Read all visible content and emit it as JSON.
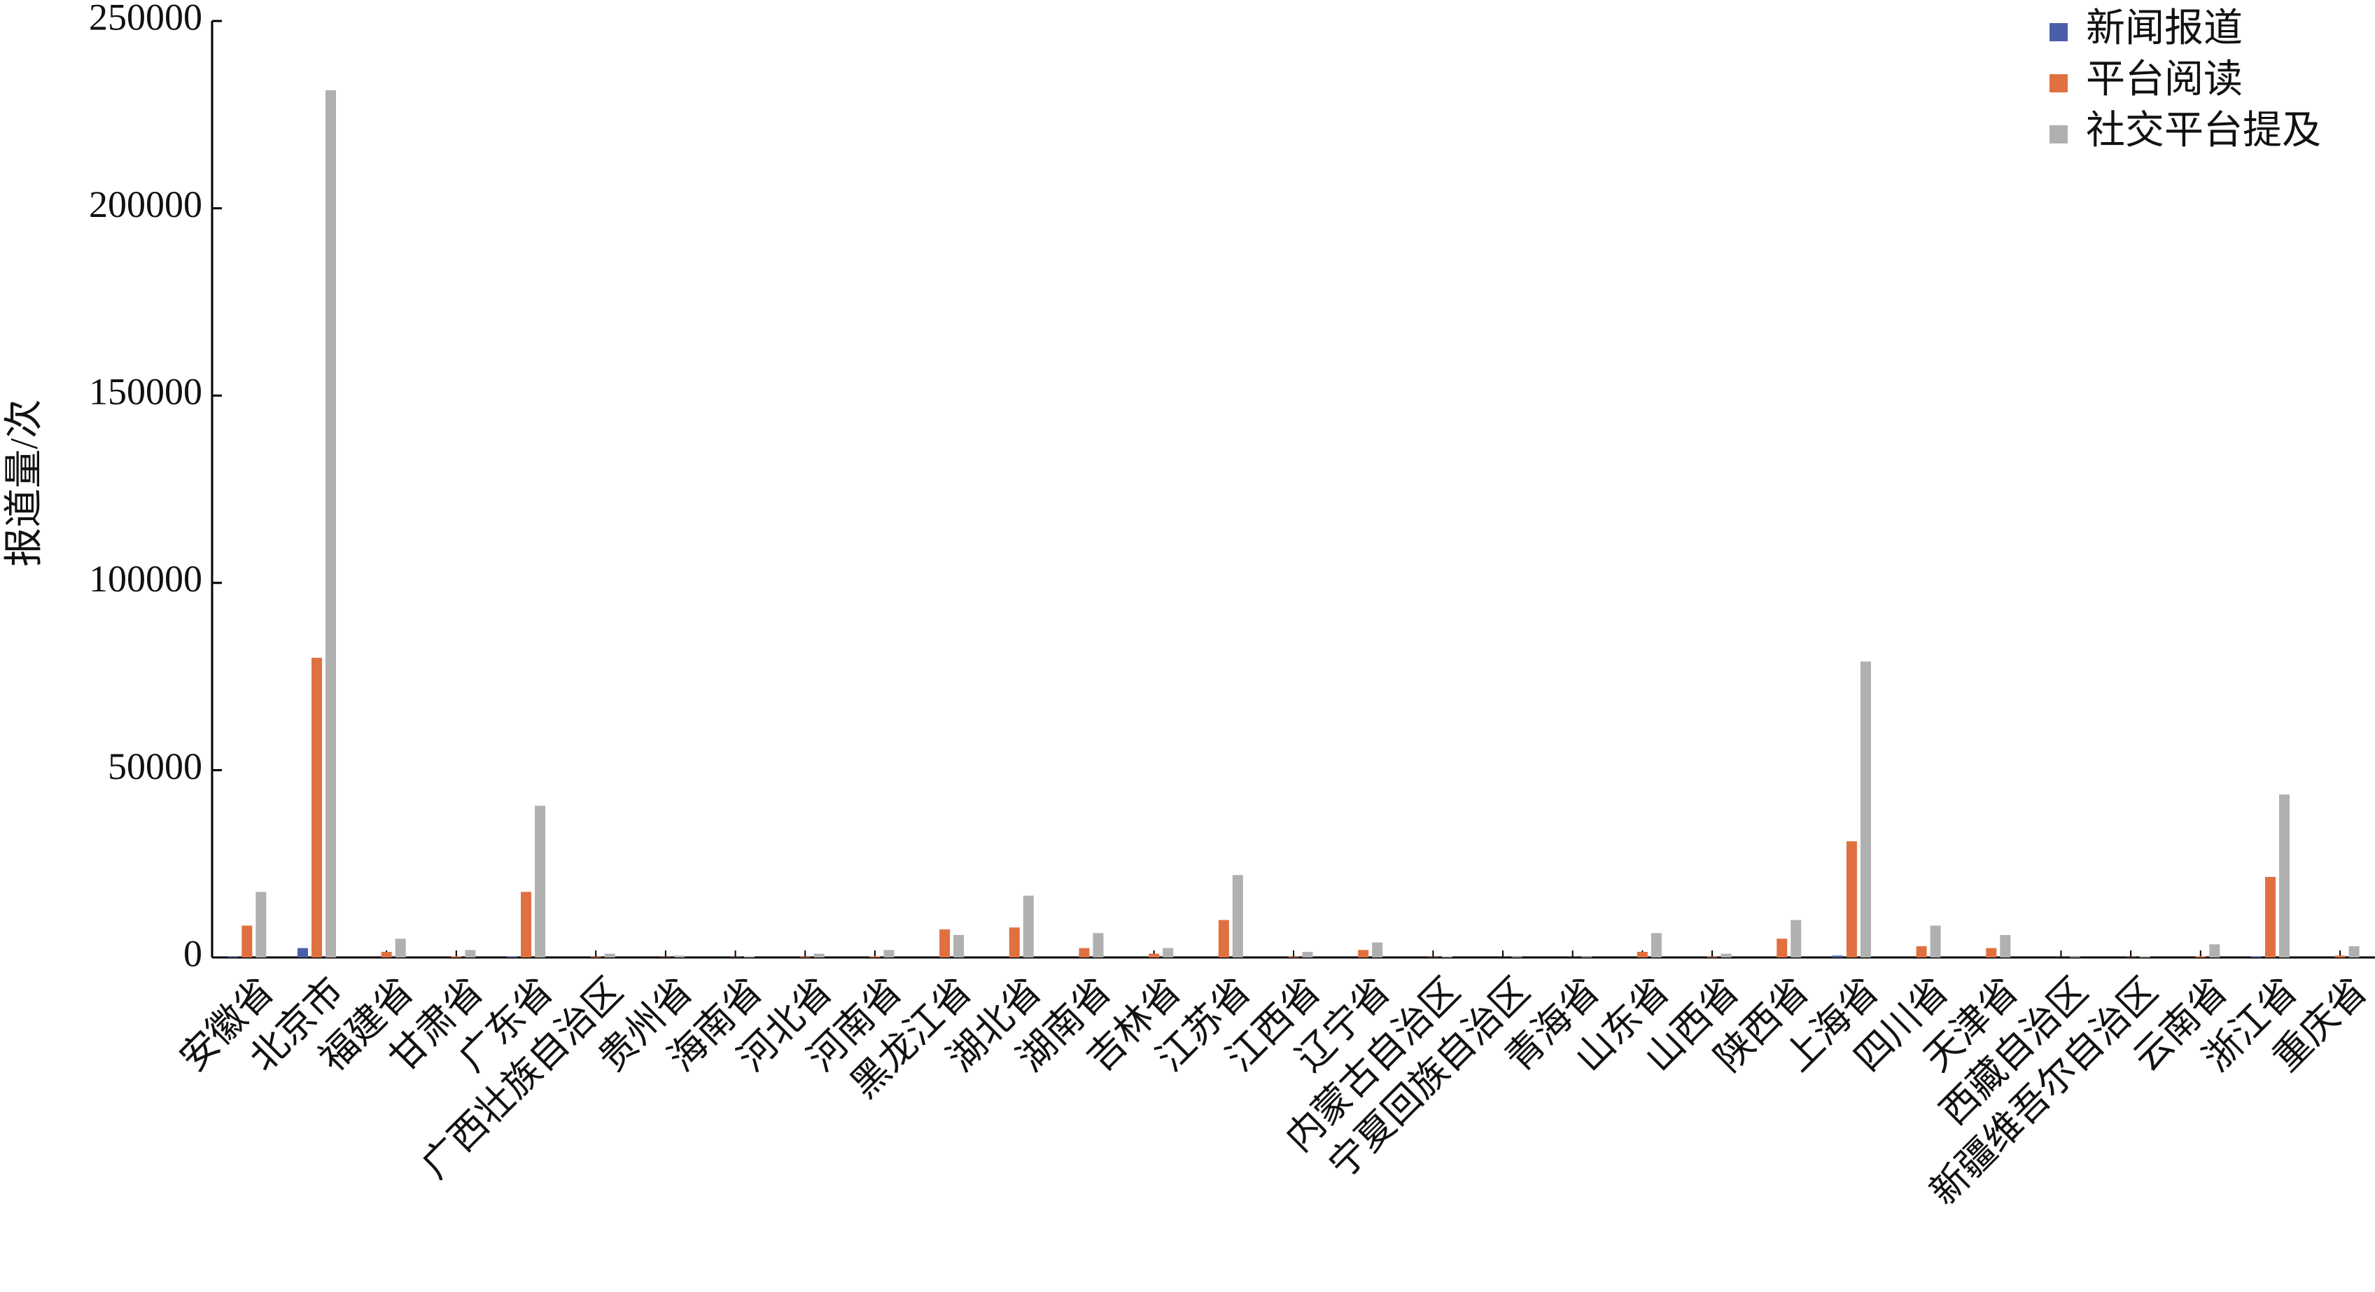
{
  "chart_data": {
    "type": "bar",
    "y_label": "报道量/次",
    "categories": [
      "安徽省",
      "北京市",
      "福建省",
      "甘肃省",
      "广东省",
      "广西壮族自治区",
      "贵州省",
      "海南省",
      "河北省",
      "河南省",
      "黑龙江省",
      "湖北省",
      "湖南省",
      "吉林省",
      "江苏省",
      "江西省",
      "辽宁省",
      "内蒙古自治区",
      "宁夏回族自治区",
      "青海省",
      "山东省",
      "山西省",
      "陕西省",
      "上海省",
      "四川省",
      "天津省",
      "西藏自治区",
      "新疆维吾尔自治区",
      "云南省",
      "浙江省",
      "重庆省"
    ],
    "series": [
      {
        "name": "新闻报道",
        "color": "#4a5fa8",
        "values": [
          200,
          2500,
          0,
          0,
          300,
          0,
          0,
          0,
          0,
          0,
          0,
          0,
          0,
          0,
          0,
          0,
          0,
          0,
          0,
          0,
          0,
          0,
          0,
          500,
          0,
          0,
          0,
          0,
          0,
          300,
          0
        ]
      },
      {
        "name": "平台阅读",
        "color": "#e07040",
        "values": [
          8500,
          80000,
          1500,
          300,
          17500,
          200,
          100,
          100,
          200,
          300,
          7500,
          8000,
          2500,
          1000,
          10000,
          200,
          2000,
          100,
          50,
          50,
          1500,
          200,
          5000,
          31000,
          3000,
          2500,
          50,
          100,
          300,
          21500,
          500
        ]
      },
      {
        "name": "社交平台提及",
        "color": "#b0b0b0",
        "values": [
          17500,
          231500,
          5000,
          2000,
          40500,
          1000,
          500,
          300,
          1000,
          2000,
          6000,
          16500,
          6500,
          2500,
          22000,
          1500,
          4000,
          300,
          200,
          200,
          6500,
          1000,
          10000,
          79000,
          8500,
          6000,
          200,
          300,
          3500,
          43500,
          3000
        ]
      }
    ],
    "ylim": [
      0,
      250000
    ],
    "yticks": [
      0,
      50000,
      100000,
      150000,
      200000,
      250000
    ],
    "legend": "upper right"
  }
}
